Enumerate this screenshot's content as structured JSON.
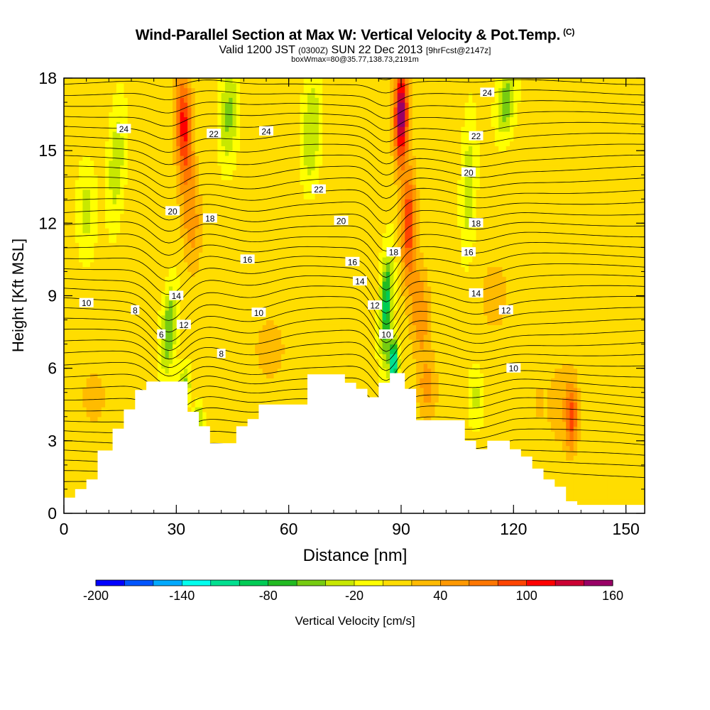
{
  "header": {
    "title_main": "Wind-Parallel Section at Max W: Vertical Velocity & Pot.Temp.",
    "title_tag": "(C)",
    "valid_prefix": "Valid 1200 JST",
    "valid_utc": "(0300Z)",
    "valid_date": "SUN 22 Dec 2013",
    "forecast": "[9hrFcst@2147z]",
    "box_info": "boxWmax=80@35.77,138.73,2191m"
  },
  "chart_data": {
    "type": "heatmap",
    "xlabel": "Distance [nm]",
    "ylabel": "Height [Kft MSL]",
    "xlim": [
      0,
      155
    ],
    "ylim": [
      0,
      18
    ],
    "x_ticks": [
      0,
      30,
      60,
      90,
      120,
      150
    ],
    "x_minor_step": 6,
    "y_ticks": [
      0,
      3,
      6,
      9,
      12,
      15,
      18
    ],
    "y_minor_step": 1,
    "colorbar": {
      "label": "Vertical Velocity [cm/s]",
      "min": -200,
      "max": 160,
      "step": 20,
      "tick_labels": [
        "-200",
        "-140",
        "-80",
        "-20",
        "40",
        "100",
        "160"
      ],
      "colors": [
        "#0000ff",
        "#0055ff",
        "#00aaff",
        "#00ffee",
        "#00e090",
        "#00cc55",
        "#22bb22",
        "#77cc11",
        "#c8e800",
        "#ffff00",
        "#ffdd00",
        "#ffbb00",
        "#ff9900",
        "#ff7700",
        "#ff4400",
        "#ff0000",
        "#cc0033",
        "#990066"
      ]
    },
    "terrain_kft": [
      [
        0,
        0.65
      ],
      [
        3,
        0.65
      ],
      [
        3,
        1
      ],
      [
        6,
        1
      ],
      [
        6,
        1.4
      ],
      [
        9,
        1.4
      ],
      [
        9,
        2.6
      ],
      [
        13,
        2.6
      ],
      [
        13,
        3.5
      ],
      [
        16,
        3.5
      ],
      [
        16,
        4.3
      ],
      [
        19,
        4.3
      ],
      [
        19,
        5.1
      ],
      [
        22,
        5.1
      ],
      [
        22,
        5.45
      ],
      [
        33,
        5.45
      ],
      [
        33,
        4.2
      ],
      [
        36,
        4.2
      ],
      [
        36,
        3.6
      ],
      [
        39,
        3.6
      ],
      [
        39,
        2.9
      ],
      [
        46,
        2.9
      ],
      [
        46,
        3.6
      ],
      [
        49,
        3.6
      ],
      [
        49,
        3.9
      ],
      [
        52,
        3.9
      ],
      [
        52,
        4.5
      ],
      [
        65,
        4.5
      ],
      [
        65,
        5.75
      ],
      [
        75,
        5.75
      ],
      [
        75,
        5.4
      ],
      [
        78,
        5.4
      ],
      [
        78,
        5.15
      ],
      [
        81,
        5.15
      ],
      [
        81,
        4.8
      ],
      [
        84,
        4.8
      ],
      [
        84,
        5.4
      ],
      [
        87,
        5.4
      ],
      [
        87,
        5.8
      ],
      [
        91,
        5.8
      ],
      [
        91,
        5.15
      ],
      [
        94,
        5.15
      ],
      [
        94,
        3.85
      ],
      [
        107,
        3.85
      ],
      [
        107,
        3.0
      ],
      [
        110,
        3.0
      ],
      [
        110,
        2.65
      ],
      [
        113,
        2.65
      ],
      [
        113,
        3.0
      ],
      [
        119,
        3.0
      ],
      [
        119,
        2.65
      ],
      [
        122,
        2.65
      ],
      [
        122,
        2.35
      ],
      [
        125,
        2.35
      ],
      [
        125,
        1.85
      ],
      [
        128,
        1.85
      ],
      [
        128,
        1.4
      ],
      [
        131,
        1.4
      ],
      [
        131,
        1.1
      ],
      [
        134,
        1.1
      ],
      [
        134,
        0.5
      ],
      [
        137,
        0.5
      ],
      [
        137,
        0.35
      ],
      [
        155,
        0.35
      ]
    ],
    "w_features": [
      {
        "x": 32,
        "y": 16,
        "value": 100,
        "sx": 2.2,
        "sy": 2.2,
        "tilt": -0.18
      },
      {
        "x": 34,
        "y": 12.2,
        "value": 45,
        "sx": 2.5,
        "sy": 2.0,
        "tilt": -0.2
      },
      {
        "x": 90,
        "y": 16.5,
        "value": 150,
        "sx": 1.8,
        "sy": 2.0,
        "tilt": 0.04
      },
      {
        "x": 92,
        "y": 12.0,
        "value": 90,
        "sx": 1.9,
        "sy": 2.2,
        "tilt": 0.05
      },
      {
        "x": 95,
        "y": 8.4,
        "value": 50,
        "sx": 2.6,
        "sy": 2.0,
        "tilt": -0.3
      },
      {
        "x": 97,
        "y": 5.2,
        "value": 40,
        "sx": 2.5,
        "sy": 1.2,
        "tilt": 0
      },
      {
        "x": 28,
        "y": 7.6,
        "value": -70,
        "sx": 2.0,
        "sy": 1.8,
        "tilt": 0.45
      },
      {
        "x": 32,
        "y": 5.2,
        "value": -60,
        "sx": 1.7,
        "sy": 0.9,
        "tilt": 0.3
      },
      {
        "x": 86,
        "y": 8.6,
        "value": -100,
        "sx": 1.6,
        "sy": 2.2,
        "tilt": 0.25
      },
      {
        "x": 88,
        "y": 6.2,
        "value": -140,
        "sx": 1.2,
        "sy": 0.9,
        "tilt": 0.1
      },
      {
        "x": 44,
        "y": 16.5,
        "value": -55,
        "sx": 2.4,
        "sy": 2.0,
        "tilt": 0.2
      },
      {
        "x": 66,
        "y": 15.8,
        "value": -50,
        "sx": 2.4,
        "sy": 2.4,
        "tilt": 0.25
      },
      {
        "x": 14,
        "y": 14.5,
        "value": -45,
        "sx": 2.2,
        "sy": 2.5,
        "tilt": 0.3
      },
      {
        "x": 6,
        "y": 12.5,
        "value": -35,
        "sx": 2.5,
        "sy": 2.0,
        "tilt": 0
      },
      {
        "x": 118,
        "y": 17.0,
        "value": -65,
        "sx": 2.4,
        "sy": 1.4,
        "tilt": 0.5
      },
      {
        "x": 108,
        "y": 13.5,
        "value": -40,
        "sx": 2.0,
        "sy": 3.0,
        "tilt": 0.15
      },
      {
        "x": 36,
        "y": 3.8,
        "value": -50,
        "sx": 1.2,
        "sy": 0.8,
        "tilt": 0
      },
      {
        "x": 110,
        "y": 4.8,
        "value": -35,
        "sx": 2.0,
        "sy": 1.2,
        "tilt": 0
      },
      {
        "x": 135.5,
        "y": 4.0,
        "value": 70,
        "sx": 1.5,
        "sy": 1.3,
        "tilt": 0
      },
      {
        "x": 133,
        "y": 4.5,
        "value": 25,
        "sx": 4.5,
        "sy": 1.8,
        "tilt": 0
      },
      {
        "x": 127,
        "y": 4.6,
        "value": 20,
        "sx": 1.0,
        "sy": 0.7,
        "tilt": 0
      },
      {
        "x": 8,
        "y": 4.8,
        "value": 20,
        "sx": 4.0,
        "sy": 1.4,
        "tilt": 0
      },
      {
        "x": 55,
        "y": 6.8,
        "value": 20,
        "sx": 5.0,
        "sy": 1.6,
        "tilt": 0
      },
      {
        "x": 115,
        "y": 9.0,
        "value": 18,
        "sx": 5.0,
        "sy": 2.0,
        "tilt": 0
      },
      {
        "x": 60,
        "y": 11.5,
        "value": 12,
        "sx": 7.0,
        "sy": 2.0,
        "tilt": 0
      }
    ],
    "contour_labels": [
      {
        "text": "24",
        "x": 16,
        "y": 15.9
      },
      {
        "text": "22",
        "x": 40,
        "y": 15.7
      },
      {
        "text": "24",
        "x": 54,
        "y": 15.8
      },
      {
        "text": "22",
        "x": 68,
        "y": 13.4
      },
      {
        "text": "24",
        "x": 113,
        "y": 17.4
      },
      {
        "text": "22",
        "x": 110,
        "y": 15.6
      },
      {
        "text": "20",
        "x": 108,
        "y": 14.1
      },
      {
        "text": "20",
        "x": 29,
        "y": 12.5
      },
      {
        "text": "18",
        "x": 39,
        "y": 12.2
      },
      {
        "text": "20",
        "x": 74,
        "y": 12.1
      },
      {
        "text": "18",
        "x": 110,
        "y": 12.0
      },
      {
        "text": "18",
        "x": 88,
        "y": 10.8
      },
      {
        "text": "16",
        "x": 108,
        "y": 10.8
      },
      {
        "text": "16",
        "x": 49,
        "y": 10.5
      },
      {
        "text": "16",
        "x": 77,
        "y": 10.4
      },
      {
        "text": "14",
        "x": 79,
        "y": 9.6
      },
      {
        "text": "14",
        "x": 30,
        "y": 9.0
      },
      {
        "text": "14",
        "x": 110,
        "y": 9.1
      },
      {
        "text": "10",
        "x": 6,
        "y": 8.7
      },
      {
        "text": "12",
        "x": 83,
        "y": 8.6
      },
      {
        "text": "12",
        "x": 118,
        "y": 8.4
      },
      {
        "text": "8",
        "x": 19,
        "y": 8.4
      },
      {
        "text": "10",
        "x": 52,
        "y": 8.3
      },
      {
        "text": "12",
        "x": 32,
        "y": 7.8
      },
      {
        "text": "10",
        "x": 86,
        "y": 7.4
      },
      {
        "text": "6",
        "x": 26,
        "y": 7.4
      },
      {
        "text": "8",
        "x": 42,
        "y": 6.6
      },
      {
        "text": "10",
        "x": 120,
        "y": 6.0
      }
    ]
  }
}
